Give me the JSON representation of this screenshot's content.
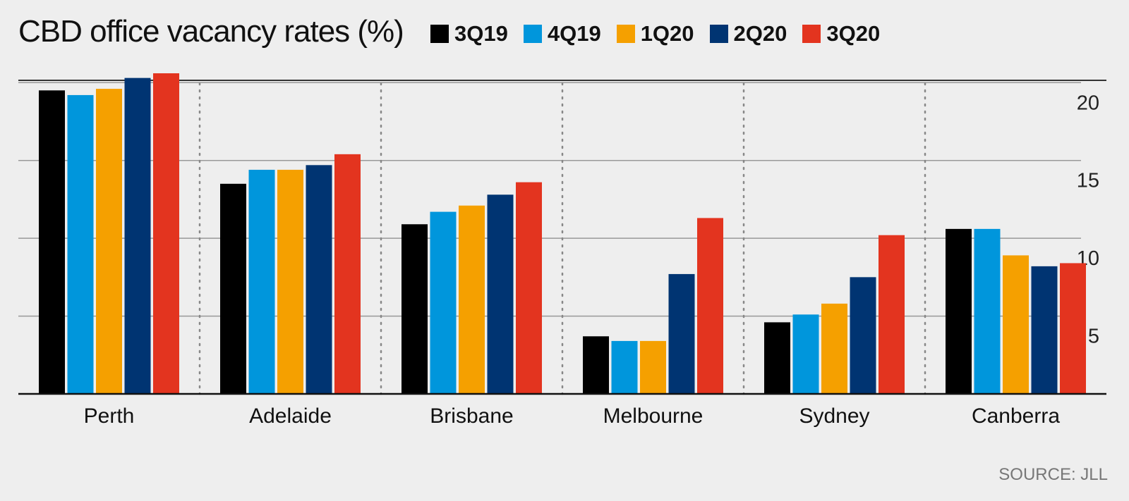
{
  "chart_data": {
    "type": "bar",
    "title": "CBD office vacancy rates (%)",
    "categories": [
      "Perth",
      "Adelaide",
      "Brisbane",
      "Melbourne",
      "Sydney",
      "Canberra"
    ],
    "series": [
      {
        "name": "3Q19",
        "color": "#000000",
        "values": [
          19.5,
          13.5,
          10.9,
          3.7,
          4.6,
          10.6
        ]
      },
      {
        "name": "4Q19",
        "color": "#0096dc",
        "values": [
          19.2,
          14.4,
          11.7,
          3.4,
          5.1,
          10.6
        ]
      },
      {
        "name": "1Q20",
        "color": "#f5a000",
        "values": [
          19.6,
          14.4,
          12.1,
          3.4,
          5.8,
          8.9
        ]
      },
      {
        "name": "2Q20",
        "color": "#003472",
        "values": [
          20.3,
          14.7,
          12.8,
          7.7,
          7.5,
          8.2
        ]
      },
      {
        "name": "3Q20",
        "color": "#e3341f",
        "values": [
          20.6,
          15.4,
          13.6,
          11.3,
          10.2,
          8.4
        ]
      }
    ],
    "yticks": [
      5,
      10,
      15,
      20
    ],
    "ylim": [
      0,
      20.6
    ],
    "xlabel": "",
    "ylabel": "",
    "axis_side": "right",
    "grid": true,
    "source": "SOURCE: JLL"
  }
}
